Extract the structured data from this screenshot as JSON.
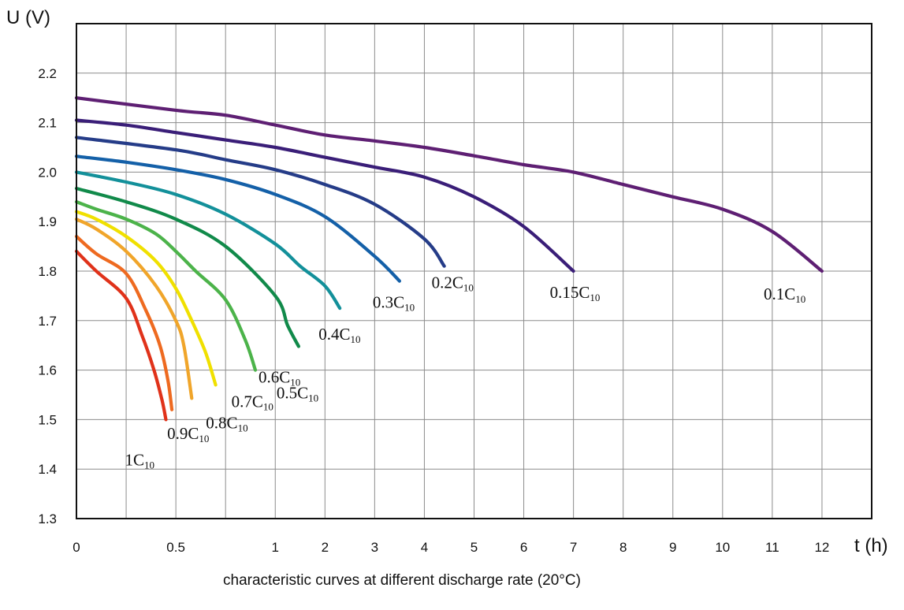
{
  "chart_data": {
    "type": "line",
    "title": "",
    "caption": "characteristic curves at different discharge rate (20°C)",
    "xlabel": "t (h)",
    "ylabel": "U (V)",
    "ylim": [
      1.3,
      2.3
    ],
    "y_ticks": [
      1.3,
      1.4,
      1.5,
      1.6,
      1.7,
      1.8,
      1.9,
      2.0,
      2.1,
      2.2
    ],
    "y_tick_labels": [
      "1.3",
      "1.4",
      "1.5",
      "1.6",
      "1.7",
      "1.8",
      "1.9",
      "2.0",
      "2.1",
      "2.2"
    ],
    "x_axis_scale": "piecewise: each gridline interval is one step; labeled values 0, 0.5, 1, 2 ... 12",
    "x_grid_values": [
      0,
      0.25,
      0.5,
      0.75,
      1,
      2,
      3,
      4,
      5,
      6,
      7,
      8,
      9,
      10,
      11,
      12,
      13
    ],
    "x_tick_labels": [
      {
        "value": 0,
        "label": "0"
      },
      {
        "value": 0.5,
        "label": "0.5"
      },
      {
        "value": 1,
        "label": "1"
      },
      {
        "value": 2,
        "label": "2"
      },
      {
        "value": 3,
        "label": "3"
      },
      {
        "value": 4,
        "label": "4"
      },
      {
        "value": 5,
        "label": "5"
      },
      {
        "value": 6,
        "label": "6"
      },
      {
        "value": 7,
        "label": "7"
      },
      {
        "value": 8,
        "label": "8"
      },
      {
        "value": 9,
        "label": "9"
      },
      {
        "value": 10,
        "label": "10"
      },
      {
        "value": 11,
        "label": "11"
      },
      {
        "value": 12,
        "label": "12"
      }
    ],
    "grid": true,
    "legend": "none (curves labeled directly)",
    "series": [
      {
        "name": "0.1C10",
        "label_main": "0.1C",
        "label_sub": "10",
        "color": "#5e1f73",
        "points": [
          [
            0,
            2.15
          ],
          [
            0.5,
            2.125
          ],
          [
            0.75,
            2.115
          ],
          [
            1,
            2.095
          ],
          [
            2,
            2.075
          ],
          [
            3,
            2.063
          ],
          [
            4,
            2.05
          ],
          [
            5,
            2.033
          ],
          [
            6,
            2.015
          ],
          [
            7,
            2.0
          ],
          [
            8,
            1.975
          ],
          [
            9,
            1.95
          ],
          [
            10,
            1.925
          ],
          [
            11,
            1.88
          ],
          [
            12,
            1.8
          ]
        ]
      },
      {
        "name": "0.15C10",
        "label_main": "0.15C",
        "label_sub": "10",
        "color": "#3a1e78",
        "points": [
          [
            0,
            2.105
          ],
          [
            0.25,
            2.095
          ],
          [
            0.5,
            2.08
          ],
          [
            0.75,
            2.065
          ],
          [
            1,
            2.05
          ],
          [
            2,
            2.03
          ],
          [
            3,
            2.01
          ],
          [
            4,
            1.99
          ],
          [
            5,
            1.95
          ],
          [
            6,
            1.89
          ],
          [
            7,
            1.8
          ]
        ]
      },
      {
        "name": "0.2C10",
        "label_main": "0.2C",
        "label_sub": "10",
        "color": "#253c88",
        "points": [
          [
            0,
            2.07
          ],
          [
            0.5,
            2.045
          ],
          [
            0.75,
            2.025
          ],
          [
            1,
            2.005
          ],
          [
            2,
            1.975
          ],
          [
            3,
            1.935
          ],
          [
            4,
            1.865
          ],
          [
            4.4,
            1.81
          ]
        ]
      },
      {
        "name": "0.3C10",
        "label_main": "0.3C",
        "label_sub": "10",
        "color": "#1460a8",
        "points": [
          [
            0,
            2.032
          ],
          [
            0.25,
            2.02
          ],
          [
            0.5,
            2.005
          ],
          [
            0.75,
            1.985
          ],
          [
            1,
            1.955
          ],
          [
            2,
            1.91
          ],
          [
            3,
            1.83
          ],
          [
            3.5,
            1.78
          ]
        ]
      },
      {
        "name": "0.4C10",
        "label_main": "0.4C",
        "label_sub": "10",
        "color": "#13909a",
        "points": [
          [
            0,
            2.0
          ],
          [
            0.25,
            1.98
          ],
          [
            0.5,
            1.955
          ],
          [
            0.75,
            1.915
          ],
          [
            1,
            1.855
          ],
          [
            1.5,
            1.81
          ],
          [
            2,
            1.77
          ],
          [
            2.3,
            1.725
          ]
        ]
      },
      {
        "name": "0.5C10",
        "label_main": "0.5C",
        "label_sub": "10",
        "color": "#118a4a",
        "points": [
          [
            0,
            1.967
          ],
          [
            0.25,
            1.94
          ],
          [
            0.5,
            1.905
          ],
          [
            0.75,
            1.85
          ],
          [
            1,
            1.75
          ],
          [
            1.25,
            1.69
          ],
          [
            1.47,
            1.648
          ]
        ]
      },
      {
        "name": "0.6C10",
        "label_main": "0.6C",
        "label_sub": "10",
        "color": "#4cb34a",
        "points": [
          [
            0,
            1.94
          ],
          [
            0.1,
            1.925
          ],
          [
            0.25,
            1.905
          ],
          [
            0.4,
            1.875
          ],
          [
            0.5,
            1.84
          ],
          [
            0.6,
            1.8
          ],
          [
            0.75,
            1.742
          ],
          [
            0.85,
            1.66
          ],
          [
            0.9,
            1.6
          ]
        ]
      },
      {
        "name": "0.7C10",
        "label_main": "0.7C",
        "label_sub": "10",
        "color": "#f0e000",
        "points": [
          [
            0,
            1.92
          ],
          [
            0.1,
            1.905
          ],
          [
            0.25,
            1.87
          ],
          [
            0.4,
            1.82
          ],
          [
            0.5,
            1.765
          ],
          [
            0.58,
            1.7
          ],
          [
            0.65,
            1.635
          ],
          [
            0.7,
            1.57
          ]
        ]
      },
      {
        "name": "0.8C10",
        "label_main": "0.8C",
        "label_sub": "10",
        "color": "#f0a52a",
        "points": [
          [
            0,
            1.905
          ],
          [
            0.1,
            1.885
          ],
          [
            0.25,
            1.84
          ],
          [
            0.4,
            1.77
          ],
          [
            0.5,
            1.7
          ],
          [
            0.54,
            1.65
          ],
          [
            0.58,
            1.543
          ]
        ]
      },
      {
        "name": "0.9C10",
        "label_main": "0.9C",
        "label_sub": "10",
        "color": "#ee6a20",
        "points": [
          [
            0,
            1.87
          ],
          [
            0.1,
            1.835
          ],
          [
            0.25,
            1.795
          ],
          [
            0.35,
            1.72
          ],
          [
            0.42,
            1.65
          ],
          [
            0.46,
            1.58
          ],
          [
            0.48,
            1.52
          ]
        ]
      },
      {
        "name": "1C10",
        "label_main": "1C",
        "label_sub": "10",
        "color": "#e0321a",
        "points": [
          [
            0,
            1.84
          ],
          [
            0.1,
            1.8
          ],
          [
            0.25,
            1.745
          ],
          [
            0.33,
            1.67
          ],
          [
            0.39,
            1.6
          ],
          [
            0.43,
            1.54
          ],
          [
            0.45,
            1.5
          ]
        ]
      }
    ]
  }
}
